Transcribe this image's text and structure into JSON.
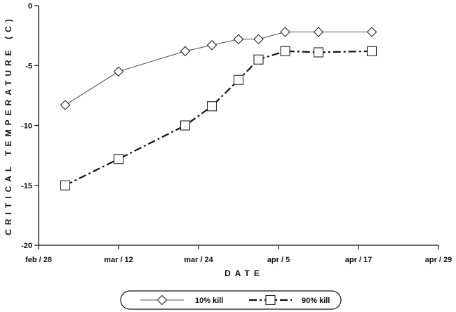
{
  "chart_data": {
    "type": "line",
    "title": "",
    "xlabel": "DATE",
    "ylabel": "CRITICAL TEMPERATURE (C)",
    "x_tick_labels": [
      "feb / 28",
      "mar / 12",
      "mar / 24",
      "apr / 5",
      "apr / 17",
      "apr / 29"
    ],
    "x_tick_days": [
      0,
      12,
      24,
      36,
      48,
      60
    ],
    "y_tick_labels": [
      "0",
      "-5",
      "-10",
      "-15",
      "-20"
    ],
    "y_ticks": [
      0,
      -5,
      -10,
      -15,
      -20
    ],
    "ylim": [
      -20,
      0
    ],
    "xlim_days": [
      0,
      60
    ],
    "grid": false,
    "legend_position": "bottom",
    "series": [
      {
        "name": "10% kill",
        "marker": "diamond",
        "line_style": "solid",
        "x_days": [
          4,
          12,
          22,
          26,
          30,
          33,
          37,
          42,
          50
        ],
        "y": [
          -8.3,
          -5.5,
          -3.8,
          -3.3,
          -2.8,
          -2.8,
          -2.2,
          -2.2,
          -2.2
        ]
      },
      {
        "name": "90% kill",
        "marker": "square",
        "line_style": "dash-dot",
        "x_days": [
          4,
          12,
          22,
          26,
          30,
          33,
          37,
          42,
          50
        ],
        "y": [
          -15.0,
          -12.8,
          -10.0,
          -8.4,
          -6.2,
          -4.5,
          -3.8,
          -3.9,
          -3.8
        ]
      }
    ]
  }
}
